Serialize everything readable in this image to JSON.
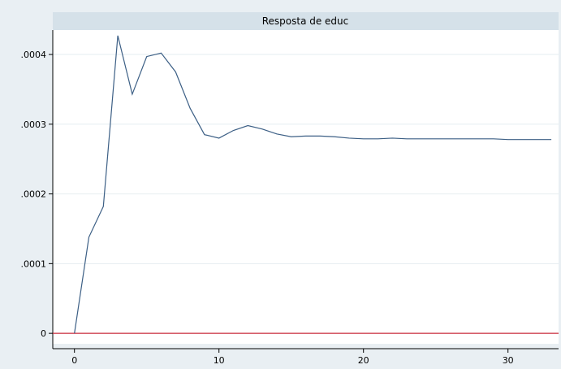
{
  "chart_data": {
    "type": "line",
    "title": "Resposta de educ",
    "xlabel": "",
    "ylabel": "",
    "xlim": [
      -1.5,
      33.5
    ],
    "ylim": [
      -1.5e-05,
      0.000435
    ],
    "xticks": [
      0,
      10,
      20,
      30
    ],
    "xtick_labels": [
      "0",
      "10",
      "20",
      "30"
    ],
    "yticks": [
      0,
      0.0001,
      0.0002,
      0.0003,
      0.0004
    ],
    "ytick_labels": [
      "0",
      ".0001",
      ".0002",
      ".0003",
      ".0004"
    ],
    "grid": true,
    "baseline": 0,
    "series": [
      {
        "x": [
          0,
          1,
          2,
          3,
          4,
          5,
          6,
          7,
          8,
          9,
          10,
          11,
          12,
          13,
          14,
          15,
          16,
          17,
          18,
          19,
          20,
          21,
          22,
          23,
          24,
          25,
          26,
          27,
          28,
          29,
          30,
          31,
          32,
          33
        ],
        "values": [
          0,
          0.000138,
          0.000182,
          0.000427,
          0.000343,
          0.000397,
          0.000402,
          0.000375,
          0.000323,
          0.000285,
          0.00028,
          0.000291,
          0.000298,
          0.000293,
          0.000286,
          0.000282,
          0.000283,
          0.000283,
          0.000282,
          0.00028,
          0.000279,
          0.000279,
          0.00028,
          0.000279,
          0.000279,
          0.000279,
          0.000279,
          0.000279,
          0.000279,
          0.000279,
          0.000278,
          0.000278,
          0.000278,
          0.000278
        ]
      }
    ],
    "colors": {
      "line": "#3c5f85",
      "baseline": "#c8283a",
      "grid": "#e6edf1",
      "title_bar": "#d5e1e9",
      "outer_bg": "#e9eff3",
      "plot_bg": "#ffffff"
    }
  }
}
